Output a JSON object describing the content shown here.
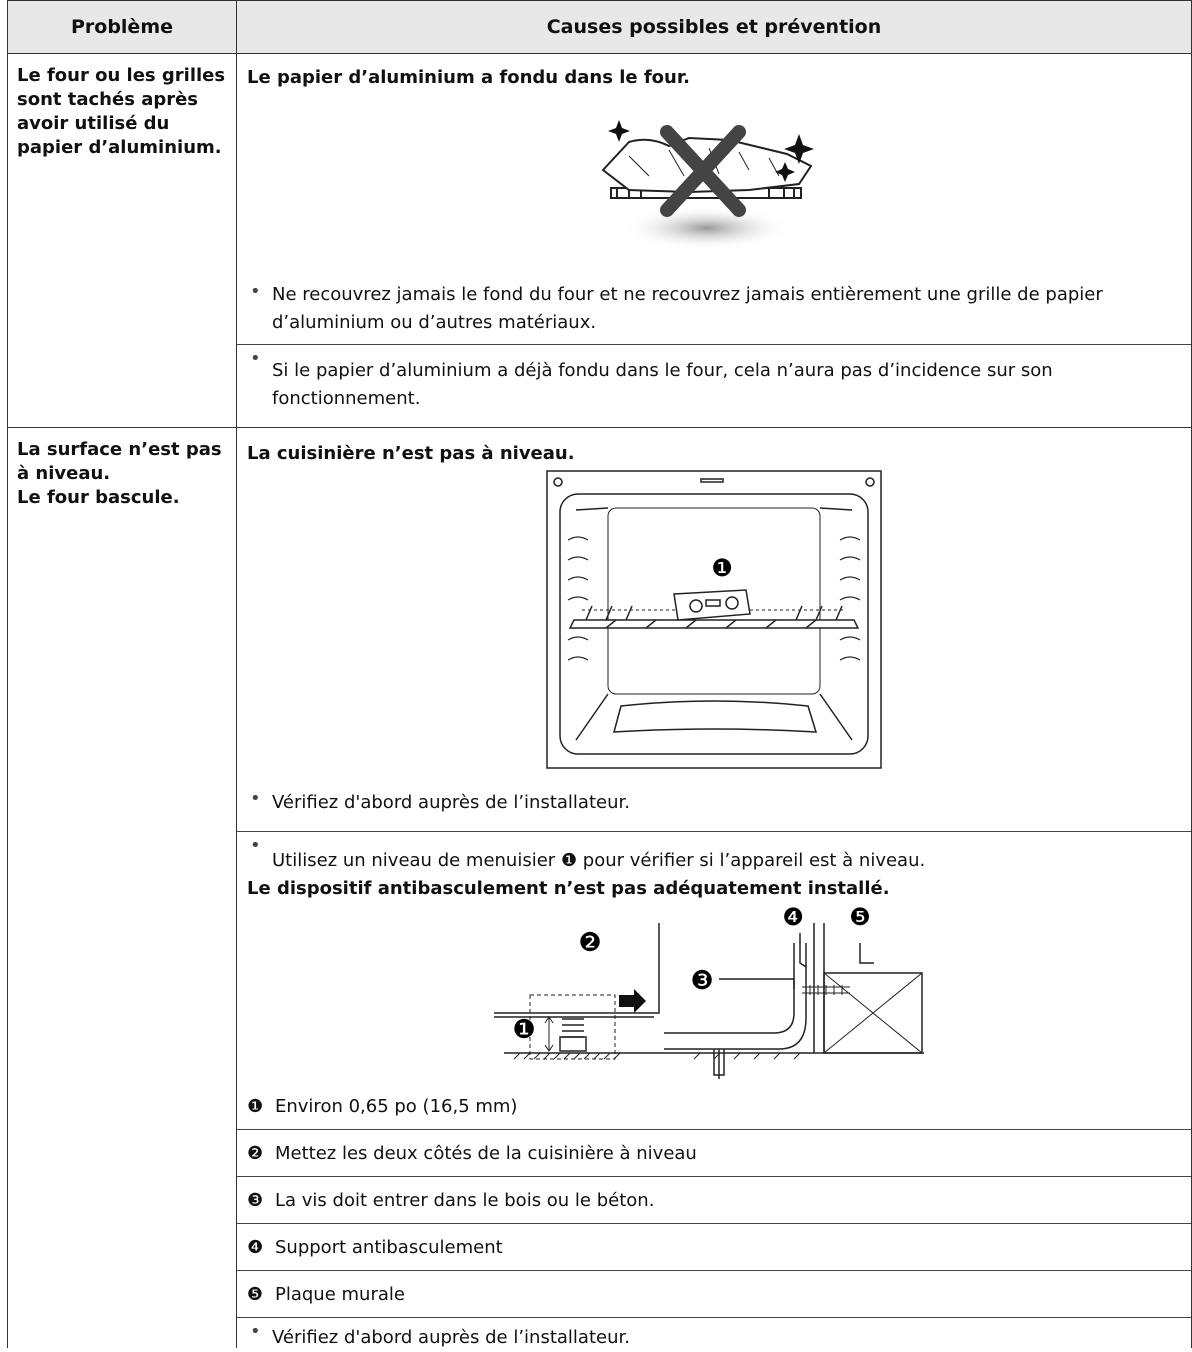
{
  "header": {
    "problem": "Problème",
    "causes": "Causes possibles et prévention"
  },
  "rows": [
    {
      "problem": [
        "Le four ou les grilles sont tachés après avoir utilisé du papier d’aluminium."
      ],
      "heading": "Le papier d’aluminium a fondu dans le four.",
      "bullets": [
        "Ne recouvrez jamais le fond du four et ne recouvrez jamais entièrement une grille de papier d’aluminium ou d’autres matériaux.",
        "Si le papier d’aluminium a déjà fondu dans le four, cela n’aura pas d’incidence sur son fonctionnement."
      ]
    },
    {
      "problem": [
        "La surface n’est pas à niveau.",
        "Le four bascule."
      ],
      "heading": "La cuisinière n’est pas à niveau.",
      "oven_callout": "❶",
      "bullets": [
        "Vérifiez d'abord auprès de l’installateur.",
        "Utilisez un niveau de menuisier ❶ pour vérifier si l’appareil est à niveau."
      ],
      "heading2": "Le dispositif antibasculement n’est pas adéquatement installé.",
      "tip_callouts": [
        "❶",
        "❷",
        "❸",
        "❹",
        "❺"
      ],
      "items": [
        {
          "marker": "❶",
          "text": "Environ 0,65 po (16,5 mm)"
        },
        {
          "marker": "❷",
          "text": "Mettez les deux côtés de la cuisinière à niveau"
        },
        {
          "marker": "❸",
          "text": "La vis doit entrer dans le bois ou le béton."
        },
        {
          "marker": "❹",
          "text": "Support antibasculement"
        },
        {
          "marker": "❺",
          "text": "Plaque murale"
        }
      ],
      "bullets2": [
        "Vérifiez d'abord auprès de l’installateur."
      ]
    }
  ]
}
